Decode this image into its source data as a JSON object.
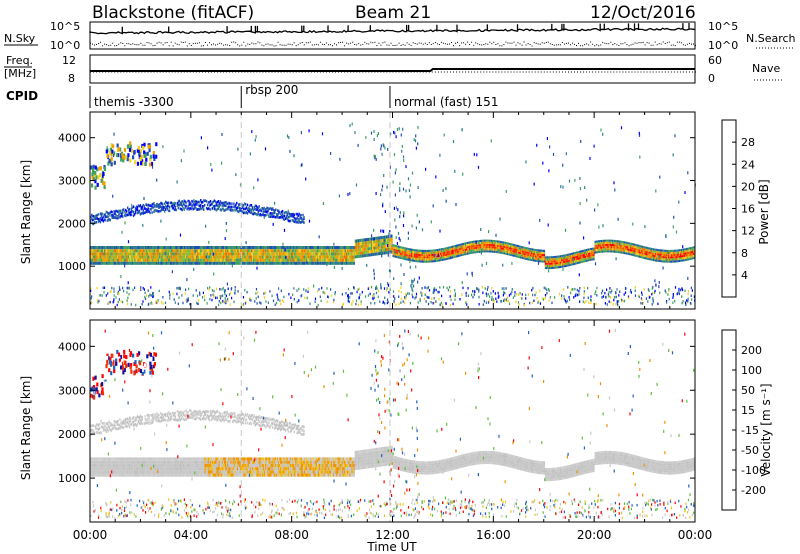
{
  "header": {
    "title": "Blackstone (fitACF)",
    "beam": "Beam 21",
    "date": "12/Oct/2016"
  },
  "strip_labels": {
    "nsky": "N.Sky",
    "nsearch": "N.Search",
    "freq_line1": "Freq.",
    "freq_line2": "[MHz]",
    "nave": "Nave",
    "cpid": "CPID",
    "top_left_hi": "10^5",
    "top_left_lo": "10^0",
    "top_right_hi": "10^5",
    "top_right_lo": "10^0",
    "freq_hi": "12",
    "freq_lo": "8",
    "nave_hi": "60",
    "nave_lo": "0"
  },
  "cpid_segments": [
    {
      "label": "themis -3300",
      "start_hour": 0
    },
    {
      "label": "rbsp 200",
      "start_hour": 6
    },
    {
      "label": "normal (fast) 151",
      "start_hour": 11.9
    }
  ],
  "chart_data": [
    {
      "type": "heatmap",
      "panel": "power",
      "xlabel": "",
      "ylabel": "Slant Range [km]",
      "xlim_hours": [
        0,
        24
      ],
      "ylim": [
        0,
        4600
      ],
      "yticks": [
        "1000",
        "2000",
        "3000",
        "4000"
      ],
      "colorbar": {
        "label": "Power [dB]",
        "ticks": [
          "4",
          "8",
          "12",
          "16",
          "20",
          "24",
          "28"
        ],
        "colors": [
          "#0000ff",
          "#1f4fb4",
          "#2f7f8f",
          "#3f9f5f",
          "#7fbf3f",
          "#f0d020",
          "#f0a000",
          "#f07000",
          "#f03000",
          "#ff0000"
        ]
      }
    },
    {
      "type": "heatmap",
      "panel": "velocity",
      "xlabel": "Time UT",
      "ylabel": "Slant Range [km]",
      "xlim_hours": [
        0,
        24
      ],
      "ylim": [
        0,
        4600
      ],
      "yticks": [
        "1000",
        "2000",
        "3000",
        "4000"
      ],
      "xticks": [
        "00:00",
        "04:00",
        "08:00",
        "12:00",
        "16:00",
        "20:00",
        "00:00"
      ],
      "colorbar": {
        "label": "Velocity [m s⁻¹]",
        "ticks": [
          "200",
          "100",
          "50",
          "15",
          "-15",
          "-50",
          "-100",
          "-200"
        ],
        "colors": [
          "#1010a0",
          "#2060c0",
          "#2f8f6f",
          "#5fbf3f",
          "#c8c8c8",
          "#f0c020",
          "#f09000",
          "#f05000",
          "#ff0000"
        ]
      }
    }
  ]
}
